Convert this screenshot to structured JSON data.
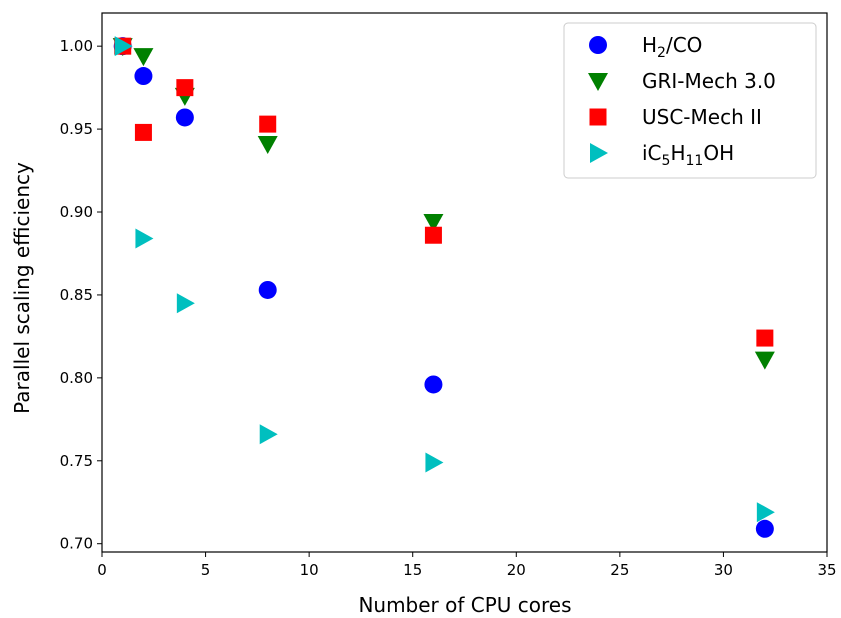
{
  "chart_data": {
    "type": "scatter",
    "xlabel": "Number of CPU cores",
    "ylabel": "Parallel scaling efficiency",
    "xlim": [
      0,
      35
    ],
    "ylim": [
      0.695,
      1.02
    ],
    "x_ticks": [
      0,
      5,
      10,
      15,
      20,
      25,
      30,
      35
    ],
    "y_ticks": [
      0.7,
      0.75,
      0.8,
      0.85,
      0.9,
      0.95,
      1.0
    ],
    "x_tick_labels": [
      "0",
      "5",
      "10",
      "15",
      "20",
      "25",
      "30",
      "35"
    ],
    "y_tick_labels": [
      "0.70",
      "0.75",
      "0.80",
      "0.85",
      "0.90",
      "0.95",
      "1.00"
    ],
    "grid": false,
    "legend_position": "top-right",
    "series": [
      {
        "name": "H2/CO",
        "legend": {
          "base": "H",
          "parts": [
            {
              "t": "H"
            },
            {
              "t": "2",
              "sub": true
            },
            {
              "t": "/CO"
            }
          ]
        },
        "marker": "circle",
        "color": "#0000ff",
        "x": [
          1,
          2,
          4,
          8,
          16,
          32
        ],
        "y": [
          1.0,
          0.982,
          0.957,
          0.853,
          0.796,
          0.709
        ]
      },
      {
        "name": "GRI-Mech 3.0",
        "legend": {
          "parts": [
            {
              "t": "GRI-Mech 3.0"
            }
          ]
        },
        "marker": "triangle-down",
        "color": "#008000",
        "x": [
          1,
          2,
          4,
          8,
          16,
          32
        ],
        "y": [
          1.0,
          0.994,
          0.97,
          0.941,
          0.894,
          0.811
        ]
      },
      {
        "name": "USC-Mech II",
        "legend": {
          "parts": [
            {
              "t": "USC-Mech II"
            }
          ]
        },
        "marker": "square",
        "color": "#ff0000",
        "x": [
          1,
          2,
          4,
          8,
          16,
          32
        ],
        "y": [
          1.0,
          0.948,
          0.975,
          0.953,
          0.886,
          0.824
        ]
      },
      {
        "name": "iC5H11OH",
        "legend": {
          "parts": [
            {
              "t": "iC"
            },
            {
              "t": "5",
              "sub": true
            },
            {
              "t": "H"
            },
            {
              "t": "11",
              "sub": true
            },
            {
              "t": "OH"
            }
          ]
        },
        "marker": "triangle-right",
        "color": "#00bfbf",
        "x": [
          1,
          2,
          4,
          8,
          16,
          32
        ],
        "y": [
          1.0,
          0.884,
          0.845,
          0.766,
          0.749,
          0.719
        ]
      }
    ]
  }
}
